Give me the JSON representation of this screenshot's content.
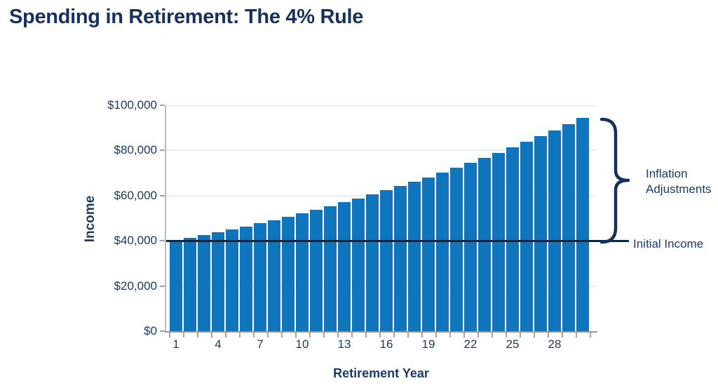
{
  "title": "Spending in Retirement: The 4% Rule",
  "chart_data": {
    "type": "bar",
    "title": "Spending in Retirement: The 4% Rule",
    "xlabel": "Retirement Year",
    "ylabel": "Income",
    "x": [
      1,
      2,
      3,
      4,
      5,
      6,
      7,
      8,
      9,
      10,
      11,
      12,
      13,
      14,
      15,
      16,
      17,
      18,
      19,
      20,
      21,
      22,
      23,
      24,
      25,
      26,
      27,
      28,
      29,
      30
    ],
    "values": [
      40000,
      41200,
      42436,
      43709,
      45020,
      46371,
      47762,
      49195,
      50671,
      52191,
      53757,
      55369,
      57030,
      58741,
      60504,
      62319,
      64188,
      66114,
      68097,
      70140,
      72244,
      74412,
      76644,
      78943,
      81312,
      83751,
      86264,
      88852,
      91517,
      94263
    ],
    "ylim": [
      0,
      100000
    ],
    "y_tick_values": [
      0,
      20000,
      40000,
      60000,
      80000,
      100000
    ],
    "y_tick_labels": [
      "$0",
      "$20,000",
      "$40,000",
      "$60,000",
      "$80,000",
      "$100,000"
    ],
    "x_tick_years": [
      1,
      4,
      7,
      10,
      13,
      16,
      19,
      22,
      25,
      28
    ],
    "x_tick_labels": [
      "1",
      "4",
      "7",
      "10",
      "13",
      "16",
      "19",
      "22",
      "25",
      "28"
    ],
    "grid": "horizontal-light",
    "legend": "none",
    "bar_color": "#0F76BD",
    "annotations": {
      "initial_income": {
        "label": "Initial Income",
        "value": 40000,
        "line_color": "#0E2747"
      },
      "inflation_adjustments": {
        "line1": "Inflation",
        "line2": "Adjustments"
      }
    },
    "colors": {
      "title_text": "#17315F",
      "label_text": "#1B3A67",
      "gridline": "#E7EFF5",
      "x_axis": "#8F9AA3",
      "y_axis": "#B6BFC8"
    }
  }
}
